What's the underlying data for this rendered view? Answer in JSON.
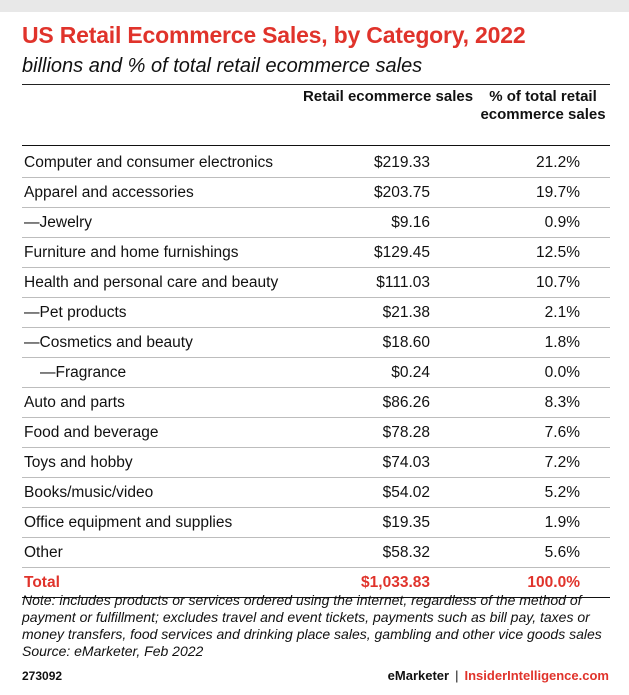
{
  "header": {
    "title": "US Retail Ecommerce Sales, by Category, 2022",
    "subtitle": "billions and % of total retail ecommerce sales"
  },
  "chart_data": {
    "type": "table",
    "title": "US Retail Ecommerce Sales, by Category, 2022",
    "subtitle": "billions and % of total retail ecommerce sales",
    "columns": [
      "Retail ecommerce sales",
      "% of total retail ecommerce sales"
    ],
    "rows": [
      {
        "label": "Computer and consumer electronics",
        "sales": "$219.33",
        "pct": "21.2%",
        "level": 0
      },
      {
        "label": "Apparel and accessories",
        "sales": "$203.75",
        "pct": "19.7%",
        "level": 0
      },
      {
        "label": "—Jewelry",
        "sales": "$9.16",
        "pct": "0.9%",
        "level": 1
      },
      {
        "label": "Furniture and home furnishings",
        "sales": "$129.45",
        "pct": "12.5%",
        "level": 0
      },
      {
        "label": "Health and personal care and beauty",
        "sales": "$111.03",
        "pct": "10.7%",
        "level": 0
      },
      {
        "label": "—Pet products",
        "sales": "$21.38",
        "pct": "2.1%",
        "level": 1
      },
      {
        "label": "—Cosmetics and beauty",
        "sales": "$18.60",
        "pct": "1.8%",
        "level": 1
      },
      {
        "label": "—Fragrance",
        "sales": "$0.24",
        "pct": "0.0%",
        "level": 2
      },
      {
        "label": "Auto and parts",
        "sales": "$86.26",
        "pct": "8.3%",
        "level": 0
      },
      {
        "label": "Food and beverage",
        "sales": "$78.28",
        "pct": "7.6%",
        "level": 0
      },
      {
        "label": "Toys and hobby",
        "sales": "$74.03",
        "pct": "7.2%",
        "level": 0
      },
      {
        "label": "Books/music/video",
        "sales": "$54.02",
        "pct": "5.2%",
        "level": 0
      },
      {
        "label": "Office equipment and supplies",
        "sales": "$19.35",
        "pct": "1.9%",
        "level": 0
      },
      {
        "label": "Other",
        "sales": "$58.32",
        "pct": "5.6%",
        "level": 0
      }
    ],
    "total": {
      "label": "Total",
      "sales": "$1,033.83",
      "pct": "100.0%"
    }
  },
  "table": {
    "col1_header": "Retail ecommerce sales",
    "col2_header": "% of total retail ecommerce sales"
  },
  "note": {
    "text": "Note: includes products or services ordered using the internet, regardless of the method of payment or fulfillment; excludes travel and event tickets, payments such as bill pay, taxes or money transfers, food services and drinking place sales, gambling and other vice goods sales",
    "source": "Source: eMarketer, Feb 2022"
  },
  "footer": {
    "chart_id": "273092",
    "brand_left": "eMarketer",
    "separator": "|",
    "brand_right": "InsiderIntelligence.com"
  },
  "colors": {
    "accent": "#e0332b",
    "text": "#111111",
    "rule": "#bdbdbd"
  }
}
